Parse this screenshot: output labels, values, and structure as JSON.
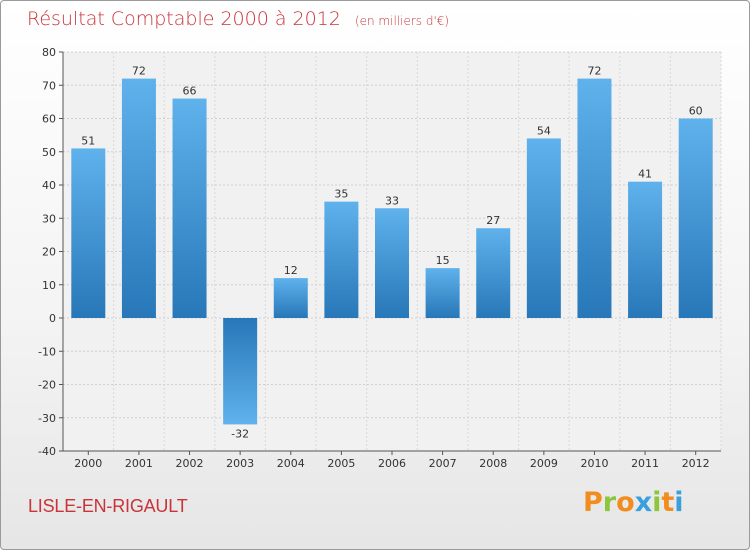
{
  "chart_data": {
    "type": "bar",
    "title": "Résultat Comptable 2000 à 2012",
    "subtitle": "(en milliers d'€)",
    "categories": [
      "2000",
      "2001",
      "2002",
      "2003",
      "2004",
      "2005",
      "2006",
      "2007",
      "2008",
      "2009",
      "2010",
      "2011",
      "2012"
    ],
    "values": [
      51,
      72,
      66,
      -32,
      12,
      35,
      33,
      15,
      27,
      54,
      72,
      41,
      60
    ],
    "ylim": [
      -40,
      80
    ],
    "yticks": [
      80,
      70,
      60,
      50,
      40,
      30,
      20,
      10,
      0,
      -10,
      -20,
      -30,
      -40
    ],
    "grid": true,
    "colors": {
      "bar_light": "#5aaee8",
      "bar_dark": "#2a7bbd",
      "title": "#c8343a"
    }
  },
  "footer": {
    "place": "LISLE-EN-RIGAULT",
    "logo": {
      "text": "Proxiti",
      "letters": [
        "P",
        "r",
        "o",
        "x",
        "i",
        "t",
        "i"
      ],
      "letter_colors": [
        "#f28c1e",
        "#8cc63f",
        "#f28c1e",
        "#3aa0dc",
        "#8cc63f",
        "#f28c1e",
        "#3aa0dc"
      ]
    }
  }
}
